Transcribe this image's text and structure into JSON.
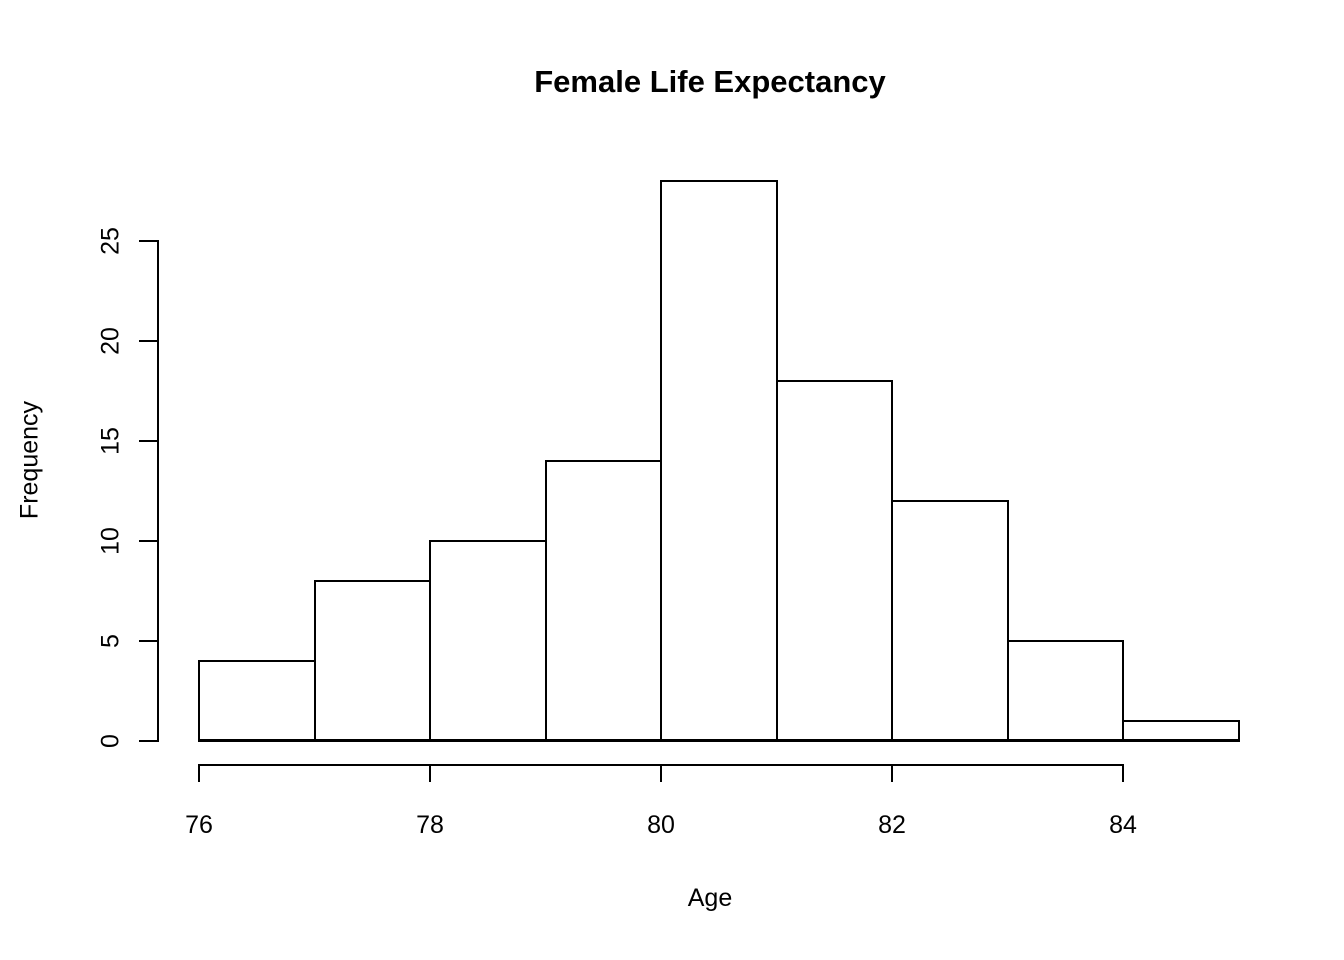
{
  "title": "Female Life Expectancy",
  "chart_data": {
    "type": "bar",
    "subtype": "histogram",
    "title": "Female Life Expectancy",
    "xlabel": "Age",
    "ylabel": "Frequency",
    "bin_edges": [
      76,
      77,
      78,
      79,
      80,
      81,
      82,
      83,
      84,
      85
    ],
    "values": [
      4,
      8,
      10,
      14,
      28,
      18,
      12,
      5,
      1
    ],
    "x_ticks": [
      76,
      78,
      80,
      82,
      84
    ],
    "y_ticks": [
      0,
      5,
      10,
      15,
      20,
      25
    ],
    "xlim": [
      76,
      85
    ],
    "ylim": [
      0,
      28
    ],
    "grid": "off",
    "legend": "none",
    "bar_fill": "#ffffff",
    "bar_stroke": "#000000",
    "background": "#ffffff"
  }
}
